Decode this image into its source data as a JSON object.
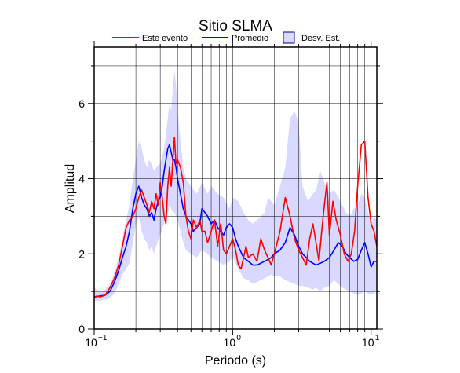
{
  "chart_data": {
    "type": "line",
    "title": "Sitio SLMA",
    "xlabel": "Periodo (s)",
    "ylabel": "Amplitud",
    "x_scale": "log",
    "xlim": [
      0.1,
      11
    ],
    "ylim": [
      0,
      7.5
    ],
    "x_tick_labels": [
      {
        "base": "10",
        "exp": "−1"
      },
      {
        "base": "10",
        "exp": "0"
      },
      {
        "base": "10",
        "exp": "1"
      }
    ],
    "y_ticks": [
      0,
      2,
      4,
      6
    ],
    "y_tick_labels": [
      "0",
      "2",
      "4",
      "6"
    ],
    "grid": true,
    "legend_placement": "top",
    "legend": {
      "este_evento": "Este evento",
      "promedio": "Promedio",
      "desv_est": "Desv. Est."
    },
    "colors": {
      "este_evento": "#ff0000",
      "promedio": "#0000ff",
      "desv_fill": "#d9d9ff",
      "desv_edge": "#000080"
    },
    "series": [
      {
        "key": "este_evento",
        "name": "Este evento",
        "x": [
          0.1,
          0.105,
          0.11,
          0.12,
          0.13,
          0.14,
          0.15,
          0.16,
          0.17,
          0.18,
          0.19,
          0.2,
          0.21,
          0.22,
          0.23,
          0.24,
          0.25,
          0.26,
          0.27,
          0.28,
          0.29,
          0.3,
          0.31,
          0.32,
          0.33,
          0.34,
          0.35,
          0.36,
          0.37,
          0.38,
          0.39,
          0.4,
          0.42,
          0.44,
          0.46,
          0.48,
          0.5,
          0.52,
          0.55,
          0.58,
          0.6,
          0.63,
          0.66,
          0.7,
          0.74,
          0.78,
          0.82,
          0.86,
          0.9,
          0.95,
          1.0,
          1.05,
          1.1,
          1.15,
          1.2,
          1.25,
          1.3,
          1.4,
          1.5,
          1.6,
          1.7,
          1.8,
          1.9,
          2.0,
          2.2,
          2.4,
          2.6,
          2.8,
          3.0,
          3.2,
          3.4,
          3.6,
          3.8,
          4.0,
          4.2,
          4.4,
          4.6,
          4.8,
          5.0,
          5.3,
          5.6,
          6.0,
          6.4,
          6.8,
          7.2,
          7.6,
          8.0,
          8.5,
          9.0,
          9.5,
          10.0,
          10.5,
          11.0
        ],
        "y": [
          0.85,
          0.88,
          0.85,
          0.9,
          1.1,
          1.35,
          1.7,
          2.2,
          2.7,
          2.9,
          3.0,
          3.2,
          3.5,
          3.7,
          3.5,
          3.3,
          3.1,
          3.4,
          3.2,
          3.6,
          3.3,
          3.9,
          3.5,
          3.0,
          2.8,
          3.8,
          4.3,
          3.8,
          4.5,
          5.1,
          4.4,
          4.5,
          4.3,
          3.9,
          3.0,
          2.6,
          2.4,
          2.9,
          2.7,
          2.9,
          2.6,
          2.6,
          2.3,
          2.6,
          2.9,
          2.2,
          2.8,
          2.1,
          2.0,
          2.2,
          2.4,
          2.1,
          1.7,
          1.6,
          1.9,
          2.2,
          1.9,
          2.0,
          1.8,
          2.4,
          2.1,
          1.9,
          1.7,
          2.0,
          2.6,
          3.5,
          3.0,
          2.4,
          2.1,
          1.9,
          1.7,
          2.4,
          2.8,
          2.3,
          1.8,
          2.6,
          3.3,
          3.9,
          2.5,
          3.4,
          2.9,
          2.5,
          2.0,
          1.8,
          2.0,
          2.6,
          3.8,
          4.9,
          5.0,
          3.5,
          2.8,
          2.6,
          2.2
        ]
      },
      {
        "key": "promedio",
        "name": "Promedio",
        "x": [
          0.1,
          0.11,
          0.12,
          0.13,
          0.14,
          0.15,
          0.16,
          0.17,
          0.18,
          0.19,
          0.2,
          0.21,
          0.22,
          0.23,
          0.24,
          0.25,
          0.26,
          0.27,
          0.28,
          0.29,
          0.3,
          0.31,
          0.32,
          0.33,
          0.34,
          0.35,
          0.36,
          0.37,
          0.38,
          0.39,
          0.4,
          0.42,
          0.44,
          0.46,
          0.48,
          0.5,
          0.52,
          0.55,
          0.58,
          0.6,
          0.63,
          0.66,
          0.7,
          0.74,
          0.78,
          0.82,
          0.86,
          0.9,
          0.95,
          1.0,
          1.05,
          1.1,
          1.2,
          1.3,
          1.4,
          1.5,
          1.6,
          1.7,
          1.8,
          1.9,
          2.0,
          2.2,
          2.4,
          2.6,
          2.8,
          3.0,
          3.2,
          3.4,
          3.6,
          3.8,
          4.0,
          4.3,
          4.6,
          5.0,
          5.4,
          5.8,
          6.2,
          6.6,
          7.0,
          7.5,
          8.0,
          8.5,
          9.0,
          9.5,
          10.0,
          10.5,
          11.0
        ],
        "y": [
          0.85,
          0.88,
          0.9,
          1.0,
          1.25,
          1.55,
          1.9,
          2.2,
          2.6,
          3.2,
          3.6,
          3.8,
          3.5,
          3.3,
          3.2,
          3.0,
          3.1,
          2.9,
          3.2,
          3.4,
          3.5,
          3.8,
          4.2,
          4.5,
          4.8,
          4.9,
          4.7,
          4.5,
          4.5,
          4.3,
          4.0,
          3.6,
          3.2,
          3.0,
          2.9,
          2.8,
          2.6,
          2.7,
          2.8,
          3.2,
          3.1,
          3.0,
          2.8,
          2.9,
          2.7,
          2.6,
          2.5,
          2.7,
          2.8,
          2.7,
          2.4,
          2.2,
          1.9,
          1.8,
          1.7,
          1.7,
          1.75,
          1.8,
          1.85,
          1.9,
          2.0,
          2.1,
          2.3,
          2.7,
          2.5,
          2.2,
          2.0,
          1.9,
          1.8,
          1.75,
          1.7,
          1.75,
          1.8,
          1.9,
          2.1,
          2.3,
          2.2,
          2.0,
          1.9,
          1.8,
          1.85,
          2.1,
          2.3,
          2.0,
          1.65,
          1.8,
          1.8
        ]
      }
    ],
    "band": {
      "name": "Desv. Est.",
      "x": [
        0.1,
        0.11,
        0.12,
        0.13,
        0.14,
        0.15,
        0.16,
        0.17,
        0.18,
        0.19,
        0.2,
        0.21,
        0.22,
        0.23,
        0.24,
        0.25,
        0.26,
        0.27,
        0.28,
        0.3,
        0.32,
        0.34,
        0.35,
        0.36,
        0.37,
        0.38,
        0.39,
        0.4,
        0.42,
        0.44,
        0.46,
        0.5,
        0.55,
        0.6,
        0.66,
        0.7,
        0.78,
        0.86,
        0.95,
        1.0,
        1.1,
        1.2,
        1.3,
        1.4,
        1.5,
        1.6,
        1.7,
        1.8,
        1.9,
        2.0,
        2.2,
        2.4,
        2.6,
        2.8,
        3.0,
        3.2,
        3.5,
        3.8,
        4.0,
        4.3,
        4.6,
        5.0,
        5.4,
        5.8,
        6.2,
        6.6,
        7.0,
        7.5,
        8.0,
        8.5,
        9.0,
        9.5,
        10.0,
        10.5,
        11.0
      ],
      "upper": [
        1.1,
        1.0,
        1.05,
        1.2,
        1.5,
        1.9,
        2.4,
        2.9,
        3.3,
        4.0,
        4.5,
        5.0,
        4.8,
        4.5,
        4.3,
        4.5,
        4.4,
        4.2,
        4.3,
        4.4,
        4.8,
        5.6,
        6.0,
        5.8,
        6.4,
        6.9,
        6.5,
        5.8,
        5.0,
        4.3,
        4.0,
        3.8,
        3.6,
        3.9,
        3.6,
        3.8,
        3.6,
        3.5,
        3.2,
        3.5,
        3.4,
        3.1,
        2.9,
        2.8,
        2.9,
        3.0,
        3.1,
        3.5,
        3.4,
        3.3,
        3.8,
        4.3,
        5.6,
        5.8,
        5.5,
        3.8,
        3.4,
        3.6,
        3.7,
        4.2,
        3.9,
        3.6,
        3.7,
        3.5,
        3.3,
        3.1,
        3.0,
        3.2,
        3.3,
        3.6,
        3.5,
        3.1,
        2.8,
        3.0,
        2.9
      ],
      "lower": [
        0.75,
        0.76,
        0.78,
        0.82,
        0.95,
        1.2,
        1.45,
        1.6,
        1.75,
        2.3,
        2.8,
        3.0,
        2.6,
        2.4,
        2.3,
        2.1,
        2.2,
        2.0,
        2.2,
        2.5,
        2.8,
        3.1,
        3.3,
        3.2,
        3.1,
        3.1,
        3.0,
        2.9,
        2.6,
        2.3,
        2.1,
        2.0,
        1.9,
        2.1,
        2.0,
        1.9,
        1.8,
        1.7,
        1.8,
        1.9,
        1.6,
        1.35,
        1.3,
        1.2,
        1.25,
        1.3,
        1.35,
        1.4,
        1.45,
        1.4,
        1.4,
        1.3,
        1.25,
        1.2,
        1.15,
        1.15,
        1.1,
        1.05,
        1.1,
        1.0,
        1.1,
        1.15,
        1.3,
        1.2,
        1.1,
        1.05,
        1.0,
        0.95,
        0.9,
        0.95,
        1.0,
        0.95,
        0.9,
        0.95,
        1.0
      ]
    }
  }
}
